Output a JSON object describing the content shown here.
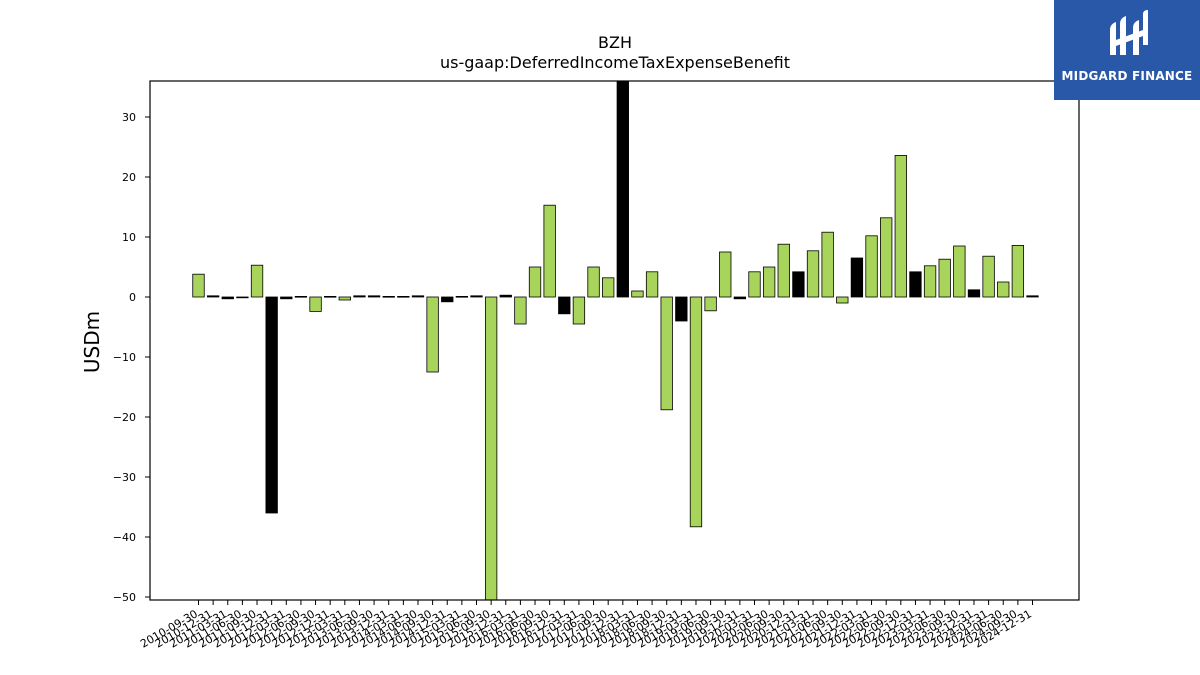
{
  "branding": {
    "name": "MIDGARD FINANCE",
    "accent": "#2a58a8"
  },
  "colors": {
    "positive_bar": "#a8d45c",
    "negative_bar": "#000000",
    "edge": "#000000"
  },
  "chart_data": {
    "type": "bar",
    "title": "BZH",
    "subtitle": "us-gaap:DeferredIncomeTaxExpenseBenefit",
    "xlabel": "",
    "ylabel": "USDm",
    "ylim": [
      -50.5,
      36
    ],
    "yticks": [
      30,
      20,
      10,
      0,
      -10,
      -20,
      -30,
      -40,
      -50
    ],
    "grid": false,
    "categories": [
      "2010-09-30",
      "2010-12-31",
      "2011-03-31",
      "2011-06-30",
      "2011-09-30",
      "2011-12-31",
      "2012-03-31",
      "2012-06-30",
      "2012-09-30",
      "2012-12-31",
      "2013-03-31",
      "2013-06-30",
      "2013-09-30",
      "2013-12-31",
      "2014-03-31",
      "2014-06-30",
      "2014-09-30",
      "2014-12-31",
      "2015-03-31",
      "2015-06-30",
      "2015-09-30",
      "2015-12-31",
      "2016-03-31",
      "2016-06-30",
      "2016-09-30",
      "2016-12-31",
      "2017-03-31",
      "2017-06-30",
      "2017-09-30",
      "2017-12-31",
      "2018-03-31",
      "2018-06-30",
      "2018-09-30",
      "2018-12-31",
      "2019-03-31",
      "2019-06-30",
      "2019-09-30",
      "2019-12-31",
      "2020-03-31",
      "2020-06-30",
      "2020-09-30",
      "2020-12-31",
      "2021-03-31",
      "2021-06-30",
      "2021-09-30",
      "2021-12-31",
      "2022-03-31",
      "2022-06-30",
      "2022-09-30",
      "2022-12-31",
      "2023-03-31",
      "2023-06-30",
      "2023-09-30",
      "2023-12-31",
      "2024-03-31",
      "2024-06-30",
      "2024-09-30",
      "2024-12-31"
    ],
    "values": [
      3.8,
      0.2,
      -0.3,
      -0.1,
      5.3,
      -36,
      -0.3,
      0.1,
      -2.4,
      0.1,
      -0.5,
      0.2,
      0.2,
      0.1,
      0.1,
      0.2,
      -12.5,
      -0.8,
      0.1,
      0.2,
      -51,
      0.3,
      -4.5,
      5,
      15.3,
      -2.8,
      -4.5,
      5,
      3.2,
      37,
      1,
      4.2,
      -18.8,
      -4,
      -38.3,
      -2.3,
      7.5,
      -0.3,
      4.2,
      5,
      8.8,
      4.2,
      7.7,
      10.8,
      -1,
      6.5,
      10.2,
      13.2,
      23.6,
      4.2,
      5.2,
      6.3,
      8.5,
      1.2,
      6.8,
      2.5,
      8.6,
      0.2
    ],
    "bar_colors": [
      "green",
      "black",
      "black",
      "black",
      "green",
      "black",
      "black",
      "black",
      "green",
      "black",
      "green",
      "black",
      "black",
      "black",
      "black",
      "black",
      "green",
      "black",
      "black",
      "black",
      "green",
      "black",
      "green",
      "green",
      "green",
      "black",
      "green",
      "green",
      "green",
      "black",
      "green",
      "green",
      "green",
      "black",
      "green",
      "green",
      "green",
      "black",
      "green",
      "green",
      "green",
      "black",
      "green",
      "green",
      "green",
      "black",
      "green",
      "green",
      "green",
      "black",
      "green",
      "green",
      "green",
      "black",
      "green",
      "green",
      "green",
      "black"
    ]
  }
}
